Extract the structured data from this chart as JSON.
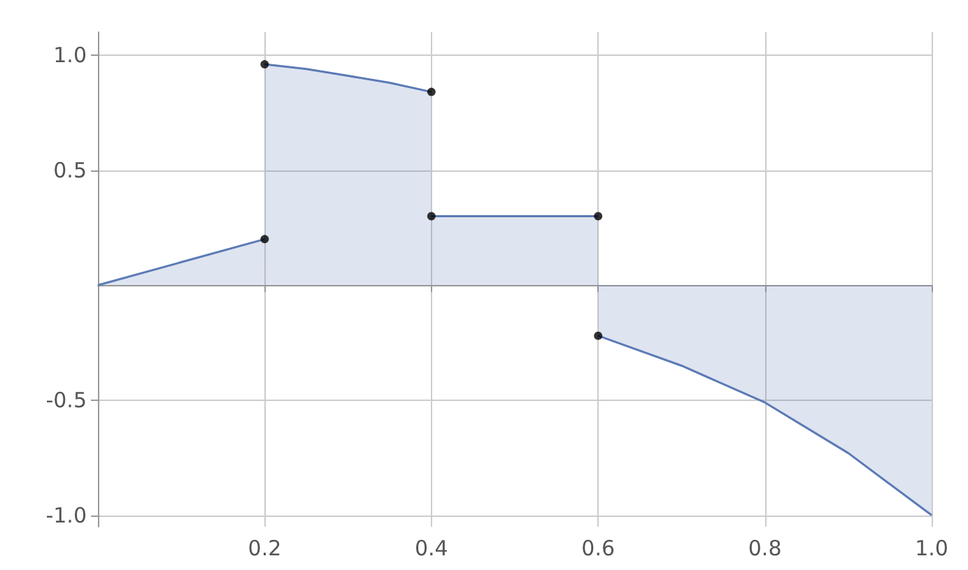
{
  "chart_data": {
    "type": "area",
    "marker": "none",
    "grid": true,
    "xlim": [
      0,
      1
    ],
    "ylim": [
      -1.05,
      1.1
    ],
    "xticks": [
      0.2,
      0.4,
      0.6,
      0.8,
      {
        "value": 1,
        "label": "1.0"
      }
    ],
    "yticks": [
      {
        "value": -1,
        "label": "-1.0"
      },
      -0.5,
      0.5,
      {
        "value": 1,
        "label": "1.0"
      }
    ],
    "series": [
      {
        "color": "#5b7ab5",
        "x": [
          0,
          0.1,
          0.2
        ],
        "values": [
          0,
          0.1,
          0.2
        ]
      },
      {
        "color": "#5b7ab5",
        "x": [
          0.2,
          0.25,
          0.3,
          0.35,
          0.4
        ],
        "values": [
          0.96,
          0.94,
          0.91,
          0.88,
          0.84
        ]
      },
      {
        "color": "#5b7ab5",
        "x": [
          0.4,
          0.5,
          0.6
        ],
        "values": [
          0.3,
          0.3,
          0.3
        ]
      },
      {
        "color": "#5b7ab5",
        "x": [
          0.6,
          0.7,
          0.8,
          0.9,
          1
        ],
        "values": [
          -0.22,
          -0.35,
          -0.51,
          -0.73,
          -1
        ]
      },
      {
        "type": "scatter",
        "marker": "circle",
        "color": "#000000",
        "x": [
          0.2,
          0.2,
          0.4,
          0.4,
          0.6,
          0.6
        ],
        "values": [
          0.2,
          0.96,
          0.84,
          0.3,
          0.3,
          -0.22
        ]
      }
    ]
  }
}
